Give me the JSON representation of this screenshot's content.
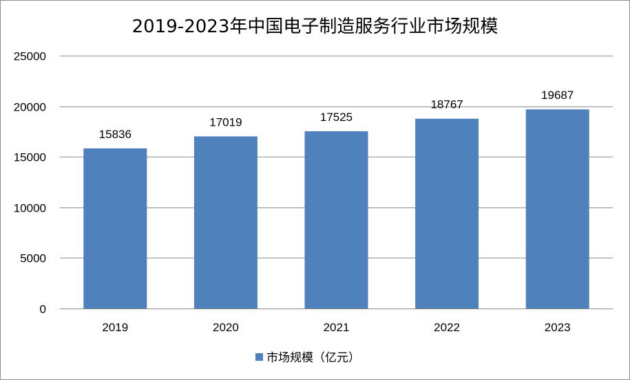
{
  "chart_data": {
    "type": "bar",
    "title": "2019-2023年中国电子制造服务行业市场规模",
    "categories": [
      "2019",
      "2020",
      "2021",
      "2022",
      "2023"
    ],
    "series": [
      {
        "name": "市场规模（亿元）",
        "values": [
          15836,
          17019,
          17525,
          18767,
          19687
        ],
        "color": "#4f81bd"
      }
    ],
    "ylim": [
      0,
      25000
    ],
    "yticks": [
      0,
      5000,
      10000,
      15000,
      20000,
      25000
    ],
    "xlabel": "",
    "ylabel": "",
    "grid": true,
    "legend": "bottom",
    "data_labels": true
  }
}
